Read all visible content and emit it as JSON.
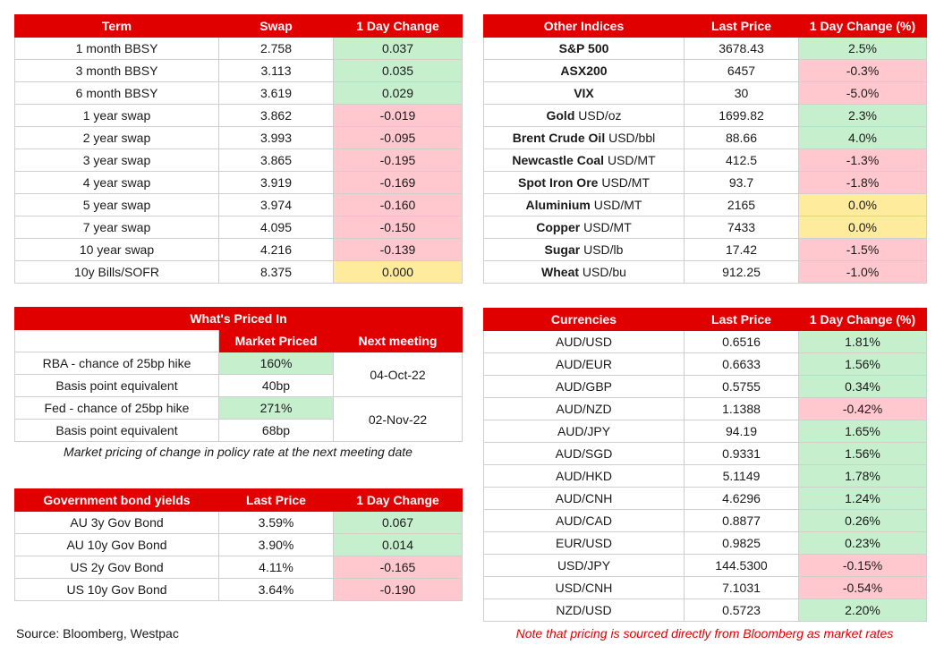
{
  "swap": {
    "headers": [
      "Term",
      "Swap",
      "1 Day Change"
    ],
    "rows": [
      {
        "term": "1 month BBSY",
        "swap": "2.758",
        "change": "0.037",
        "tone": "pos"
      },
      {
        "term": "3 month BBSY",
        "swap": "3.113",
        "change": "0.035",
        "tone": "pos"
      },
      {
        "term": "6 month BBSY",
        "swap": "3.619",
        "change": "0.029",
        "tone": "pos"
      },
      {
        "term": "1 year swap",
        "swap": "3.862",
        "change": "-0.019",
        "tone": "neg"
      },
      {
        "term": "2 year swap",
        "swap": "3.993",
        "change": "-0.095",
        "tone": "neg"
      },
      {
        "term": "3 year swap",
        "swap": "3.865",
        "change": "-0.195",
        "tone": "neg"
      },
      {
        "term": "4 year swap",
        "swap": "3.919",
        "change": "-0.169",
        "tone": "neg"
      },
      {
        "term": "5 year swap",
        "swap": "3.974",
        "change": "-0.160",
        "tone": "neg"
      },
      {
        "term": "7 year swap",
        "swap": "4.095",
        "change": "-0.150",
        "tone": "neg"
      },
      {
        "term": "10 year swap",
        "swap": "4.216",
        "change": "-0.139",
        "tone": "neg"
      },
      {
        "term": "10y Bills/SOFR",
        "swap": "8.375",
        "change": "0.000",
        "tone": "neu"
      }
    ]
  },
  "indices": {
    "headers": [
      "Other Indices",
      "Last Price",
      "1 Day Change (%)"
    ],
    "rows": [
      {
        "name": "S&P 500",
        "unit": "",
        "price": "3678.43",
        "change": "2.5%",
        "tone": "pos"
      },
      {
        "name": "ASX200",
        "unit": "",
        "price": "6457",
        "change": "-0.3%",
        "tone": "neg"
      },
      {
        "name": "VIX",
        "unit": "",
        "price": "30",
        "change": "-5.0%",
        "tone": "neg"
      },
      {
        "name": "Gold",
        "unit": " USD/oz",
        "price": "1699.82",
        "change": "2.3%",
        "tone": "pos"
      },
      {
        "name": "Brent Crude Oil",
        "unit": " USD/bbl",
        "price": "88.66",
        "change": "4.0%",
        "tone": "pos"
      },
      {
        "name": "Newcastle Coal",
        "unit": " USD/MT",
        "price": "412.5",
        "change": "-1.3%",
        "tone": "neg"
      },
      {
        "name": "Spot Iron Ore",
        "unit": " USD/MT",
        "price": "93.7",
        "change": "-1.8%",
        "tone": "neg"
      },
      {
        "name": "Aluminium",
        "unit": " USD/MT",
        "price": "2165",
        "change": "0.0%",
        "tone": "neu"
      },
      {
        "name": "Copper",
        "unit": " USD/MT",
        "price": "7433",
        "change": "0.0%",
        "tone": "neu"
      },
      {
        "name": "Sugar",
        "unit": " USD/lb",
        "price": "17.42",
        "change": "-1.5%",
        "tone": "neg"
      },
      {
        "name": "Wheat",
        "unit": " USD/bu",
        "price": "912.25",
        "change": "-1.0%",
        "tone": "neg"
      }
    ]
  },
  "priced": {
    "title": "What's Priced In",
    "headers": [
      "Market Priced",
      "Next meeting"
    ],
    "rows": [
      {
        "label": "RBA - chance of 25bp hike",
        "value": "160%",
        "tone": "pos"
      },
      {
        "label": "Basis point equivalent",
        "value": "40bp",
        "tone": "plain"
      },
      {
        "label": "Fed - chance of 25bp hike",
        "value": "271%",
        "tone": "pos"
      },
      {
        "label": "Basis point equivalent",
        "value": "68bp",
        "tone": "plain"
      }
    ],
    "meetings": [
      "04-Oct-22",
      "02-Nov-22"
    ],
    "note": "Market pricing of change in policy rate at the next meeting date"
  },
  "bonds": {
    "headers": [
      "Government bond yields",
      "Last Price",
      "1 Day Change"
    ],
    "rows": [
      {
        "name": "AU 3y Gov Bond",
        "price": "3.59%",
        "change": "0.067",
        "tone": "pos"
      },
      {
        "name": "AU 10y Gov Bond",
        "price": "3.90%",
        "change": "0.014",
        "tone": "pos"
      },
      {
        "name": "US 2y Gov Bond",
        "price": "4.11%",
        "change": "-0.165",
        "tone": "neg"
      },
      {
        "name": "US 10y Gov Bond",
        "price": "3.64%",
        "change": "-0.190",
        "tone": "neg"
      }
    ]
  },
  "currencies": {
    "headers": [
      "Currencies",
      "Last Price",
      "1 Day Change (%)"
    ],
    "rows": [
      {
        "pair": "AUD/USD",
        "price": "0.6516",
        "change": "1.81%",
        "tone": "pos"
      },
      {
        "pair": "AUD/EUR",
        "price": "0.6633",
        "change": "1.56%",
        "tone": "pos"
      },
      {
        "pair": "AUD/GBP",
        "price": "0.5755",
        "change": "0.34%",
        "tone": "pos"
      },
      {
        "pair": "AUD/NZD",
        "price": "1.1388",
        "change": "-0.42%",
        "tone": "neg"
      },
      {
        "pair": "AUD/JPY",
        "price": "94.19",
        "change": "1.65%",
        "tone": "pos"
      },
      {
        "pair": "AUD/SGD",
        "price": "0.9331",
        "change": "1.56%",
        "tone": "pos"
      },
      {
        "pair": "AUD/HKD",
        "price": "5.1149",
        "change": "1.78%",
        "tone": "pos"
      },
      {
        "pair": "AUD/CNH",
        "price": "4.6296",
        "change": "1.24%",
        "tone": "pos"
      },
      {
        "pair": "AUD/CAD",
        "price": "0.8877",
        "change": "0.26%",
        "tone": "pos"
      },
      {
        "pair": "EUR/USD",
        "price": "0.9825",
        "change": "0.23%",
        "tone": "pos"
      },
      {
        "pair": "USD/JPY",
        "price": "144.5300",
        "change": "-0.15%",
        "tone": "neg"
      },
      {
        "pair": "USD/CNH",
        "price": "7.1031",
        "change": "-0.54%",
        "tone": "neg"
      },
      {
        "pair": "NZD/USD",
        "price": "0.5723",
        "change": "2.20%",
        "tone": "pos"
      }
    ]
  },
  "footer": {
    "source": "Source: Bloomberg, Westpac",
    "disclaimer": "Note that pricing is sourced directly from Bloomberg as market rates"
  }
}
